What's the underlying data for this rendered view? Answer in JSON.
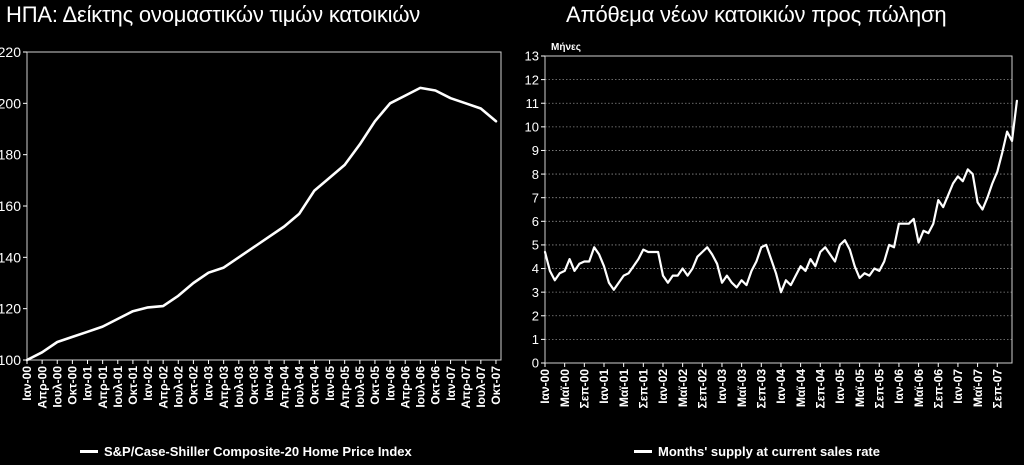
{
  "chart_data": [
    {
      "type": "line",
      "title": "ΗΠΑ: Δείκτης ονομαστικών τιμών κατοικιών",
      "ylabel": "",
      "xlabel": "",
      "ylim": [
        100,
        220
      ],
      "yticks": [
        100,
        120,
        140,
        160,
        180,
        200,
        220
      ],
      "xlim": [
        0,
        94
      ],
      "x_tick_labels": [
        {
          "x": 0,
          "label": "Ιαν-00"
        },
        {
          "x": 3,
          "label": "Απρ-00"
        },
        {
          "x": 6,
          "label": "Ιουλ-00"
        },
        {
          "x": 9,
          "label": "Οκτ-00"
        },
        {
          "x": 12,
          "label": "Ιαν-01"
        },
        {
          "x": 15,
          "label": "Απρ-01"
        },
        {
          "x": 18,
          "label": "Ιουλ-01"
        },
        {
          "x": 21,
          "label": "Οκτ-01"
        },
        {
          "x": 24,
          "label": "Ιαν-02"
        },
        {
          "x": 27,
          "label": "Απρ-02"
        },
        {
          "x": 30,
          "label": "Ιουλ-02"
        },
        {
          "x": 33,
          "label": "Οκτ-02"
        },
        {
          "x": 36,
          "label": "Ιαν-03"
        },
        {
          "x": 39,
          "label": "Απρ-03"
        },
        {
          "x": 42,
          "label": "Ιουλ-03"
        },
        {
          "x": 45,
          "label": "Οκτ-03"
        },
        {
          "x": 48,
          "label": "Ιαν-04"
        },
        {
          "x": 51,
          "label": "Απρ-04"
        },
        {
          "x": 54,
          "label": "Ιουλ-04"
        },
        {
          "x": 57,
          "label": "Οκτ-04"
        },
        {
          "x": 60,
          "label": "Ιαν-05"
        },
        {
          "x": 63,
          "label": "Απρ-05"
        },
        {
          "x": 66,
          "label": "Ιουλ-05"
        },
        {
          "x": 69,
          "label": "Οκτ-05"
        },
        {
          "x": 72,
          "label": "Ιαν-06"
        },
        {
          "x": 75,
          "label": "Απρ-06"
        },
        {
          "x": 78,
          "label": "Ιουλ-06"
        },
        {
          "x": 81,
          "label": "Οκτ-06"
        },
        {
          "x": 84,
          "label": "Ιαν-07"
        },
        {
          "x": 87,
          "label": "Απρ-07"
        },
        {
          "x": 90,
          "label": "Ιουλ-07"
        },
        {
          "x": 93,
          "label": "Οκτ-07"
        }
      ],
      "grid": false,
      "legend_position": "bottom",
      "series": [
        {
          "name": "S&P/Case-Shiller Composite-20 Home Price Index",
          "color": "#ffffff",
          "points": [
            [
              0,
              100
            ],
            [
              3,
              103
            ],
            [
              6,
              107
            ],
            [
              9,
              109
            ],
            [
              12,
              111
            ],
            [
              15,
              113
            ],
            [
              18,
              116
            ],
            [
              21,
              119
            ],
            [
              24,
              120.5
            ],
            [
              27,
              121
            ],
            [
              30,
              125
            ],
            [
              33,
              130
            ],
            [
              36,
              134
            ],
            [
              39,
              136
            ],
            [
              42,
              140
            ],
            [
              45,
              144
            ],
            [
              48,
              148
            ],
            [
              51,
              152
            ],
            [
              54,
              157
            ],
            [
              57,
              166
            ],
            [
              60,
              171
            ],
            [
              63,
              176
            ],
            [
              66,
              184
            ],
            [
              69,
              193
            ],
            [
              72,
              200
            ],
            [
              75,
              203
            ],
            [
              78,
              206
            ],
            [
              81,
              205
            ],
            [
              84,
              202
            ],
            [
              87,
              200
            ],
            [
              90,
              198
            ],
            [
              93,
              193
            ]
          ]
        }
      ]
    },
    {
      "type": "line",
      "title": "Απόθεμα νέων κατοικιών προς πώληση",
      "ylabel": "Μήνες",
      "xlabel": "",
      "ylim": [
        0,
        13
      ],
      "yticks": [
        0,
        1,
        2,
        3,
        4,
        5,
        6,
        7,
        8,
        9,
        10,
        11,
        12,
        13
      ],
      "xlim": [
        0,
        95
      ],
      "x_tick_labels": [
        {
          "x": 0,
          "label": "Ιαν-00"
        },
        {
          "x": 4,
          "label": "Μαϊ-00"
        },
        {
          "x": 8,
          "label": "Σεπ-00"
        },
        {
          "x": 12,
          "label": "Ιαν-01"
        },
        {
          "x": 16,
          "label": "Μαϊ-01"
        },
        {
          "x": 20,
          "label": "Σεπ-01"
        },
        {
          "x": 24,
          "label": "Ιαν-02"
        },
        {
          "x": 28,
          "label": "Μαϊ-02"
        },
        {
          "x": 32,
          "label": "Σεπ-02"
        },
        {
          "x": 36,
          "label": "Ιαν-03"
        },
        {
          "x": 40,
          "label": "Μαϊ-03"
        },
        {
          "x": 44,
          "label": "Σεπ-03"
        },
        {
          "x": 48,
          "label": "Ιαν-04"
        },
        {
          "x": 52,
          "label": "Μαϊ-04"
        },
        {
          "x": 56,
          "label": "Σεπ-04"
        },
        {
          "x": 60,
          "label": "Ιαν-05"
        },
        {
          "x": 64,
          "label": "Μαϊ-05"
        },
        {
          "x": 68,
          "label": "Σεπ-05"
        },
        {
          "x": 72,
          "label": "Ιαν-06"
        },
        {
          "x": 76,
          "label": "Μαϊ-06"
        },
        {
          "x": 80,
          "label": "Σεπ-06"
        },
        {
          "x": 84,
          "label": "Ιαν-07"
        },
        {
          "x": 88,
          "label": "Μαϊ-07"
        },
        {
          "x": 92,
          "label": "Σεπ-07"
        }
      ],
      "grid": true,
      "legend_position": "bottom",
      "series": [
        {
          "name": "Months' supply at current sales rate",
          "color": "#ffffff",
          "points": [
            [
              0,
              4.7
            ],
            [
              1,
              3.9
            ],
            [
              2,
              3.5
            ],
            [
              3,
              3.8
            ],
            [
              4,
              3.9
            ],
            [
              5,
              4.4
            ],
            [
              6,
              3.9
            ],
            [
              7,
              4.2
            ],
            [
              8,
              4.3
            ],
            [
              9,
              4.3
            ],
            [
              10,
              4.9
            ],
            [
              11,
              4.6
            ],
            [
              12,
              4.1
            ],
            [
              13,
              3.4
            ],
            [
              14,
              3.1
            ],
            [
              15,
              3.4
            ],
            [
              16,
              3.7
            ],
            [
              17,
              3.8
            ],
            [
              18,
              4.1
            ],
            [
              19,
              4.4
            ],
            [
              20,
              4.8
            ],
            [
              21,
              4.7
            ],
            [
              22,
              4.7
            ],
            [
              23,
              4.7
            ],
            [
              24,
              3.7
            ],
            [
              25,
              3.4
            ],
            [
              26,
              3.7
            ],
            [
              27,
              3.7
            ],
            [
              28,
              4.0
            ],
            [
              29,
              3.7
            ],
            [
              30,
              4.0
            ],
            [
              31,
              4.5
            ],
            [
              32,
              4.7
            ],
            [
              33,
              4.9
            ],
            [
              34,
              4.6
            ],
            [
              35,
              4.2
            ],
            [
              36,
              3.4
            ],
            [
              37,
              3.7
            ],
            [
              38,
              3.4
            ],
            [
              39,
              3.2
            ],
            [
              40,
              3.5
            ],
            [
              41,
              3.3
            ],
            [
              42,
              3.9
            ],
            [
              43,
              4.3
            ],
            [
              44,
              4.9
            ],
            [
              45,
              5.0
            ],
            [
              46,
              4.4
            ],
            [
              47,
              3.8
            ],
            [
              48,
              3.0
            ],
            [
              49,
              3.5
            ],
            [
              50,
              3.3
            ],
            [
              51,
              3.7
            ],
            [
              52,
              4.1
            ],
            [
              53,
              3.9
            ],
            [
              54,
              4.4
            ],
            [
              55,
              4.1
            ],
            [
              56,
              4.7
            ],
            [
              57,
              4.9
            ],
            [
              58,
              4.6
            ],
            [
              59,
              4.3
            ],
            [
              60,
              5.0
            ],
            [
              61,
              5.2
            ],
            [
              62,
              4.8
            ],
            [
              63,
              4.1
            ],
            [
              64,
              3.6
            ],
            [
              65,
              3.8
            ],
            [
              66,
              3.7
            ],
            [
              67,
              4.0
            ],
            [
              68,
              3.9
            ],
            [
              69,
              4.3
            ],
            [
              70,
              5.0
            ],
            [
              71,
              4.9
            ],
            [
              72,
              5.9
            ],
            [
              73,
              5.9
            ],
            [
              74,
              5.9
            ],
            [
              75,
              6.1
            ],
            [
              76,
              5.1
            ],
            [
              77,
              5.6
            ],
            [
              78,
              5.5
            ],
            [
              79,
              5.9
            ],
            [
              80,
              6.9
            ],
            [
              81,
              6.6
            ],
            [
              82,
              7.1
            ],
            [
              83,
              7.6
            ],
            [
              84,
              7.9
            ],
            [
              85,
              7.7
            ],
            [
              86,
              8.2
            ],
            [
              87,
              8.0
            ],
            [
              88,
              6.8
            ],
            [
              89,
              6.5
            ],
            [
              90,
              7.0
            ],
            [
              91,
              7.6
            ],
            [
              92,
              8.1
            ],
            [
              93,
              8.9
            ],
            [
              94,
              9.8
            ],
            [
              95,
              9.4
            ],
            [
              96,
              11.1
            ]
          ]
        }
      ]
    }
  ]
}
